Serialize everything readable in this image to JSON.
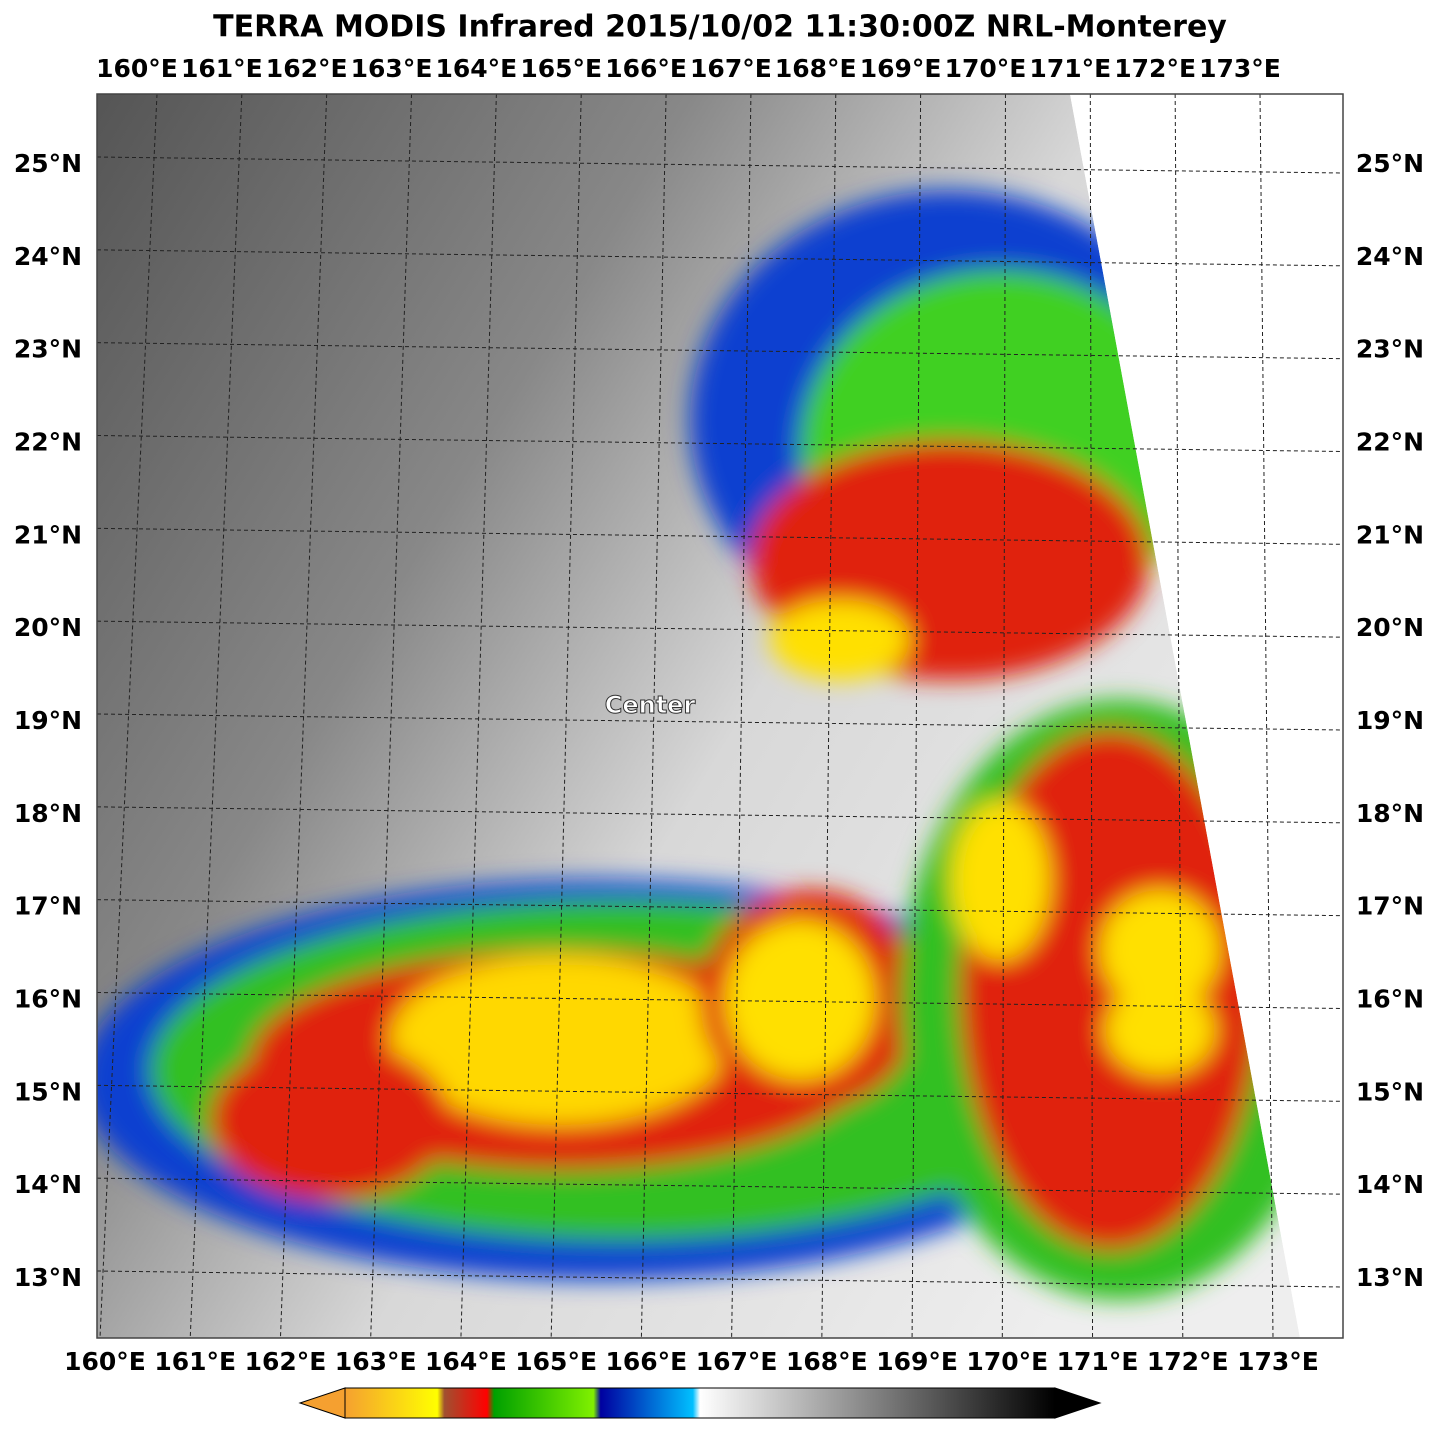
{
  "title": "TERRA MODIS Infrared 2015/10/02 11:30:00Z NRL-Monterey",
  "longitudes": [
    "160°E",
    "161°E",
    "162°E",
    "163°E",
    "164°E",
    "165°E",
    "166°E",
    "167°E",
    "168°E",
    "169°E",
    "170°E",
    "171°E",
    "172°E",
    "173°E"
  ],
  "latitudes": [
    "25°N",
    "24°N",
    "23°N",
    "22°N",
    "21°N",
    "20°N",
    "19°N",
    "18°N",
    "17°N",
    "16°N",
    "15°N",
    "14°N",
    "13°N"
  ],
  "annotation": "Center"
}
